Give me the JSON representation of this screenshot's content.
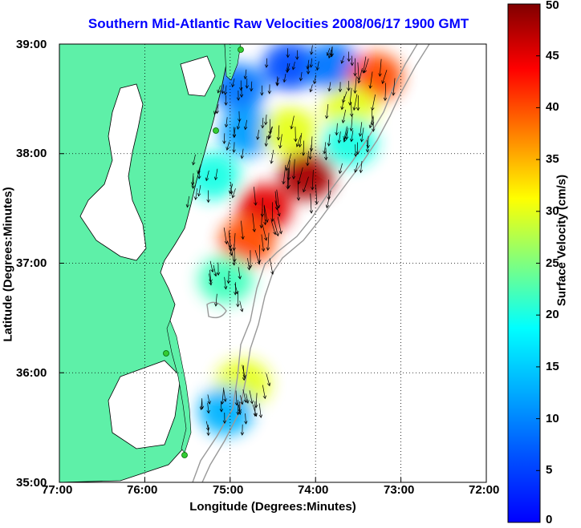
{
  "title": "Southern Mid-Atlantic Raw Velocities 2008/06/17 1900 GMT",
  "axes": {
    "xlabel": "Longitude (Degrees:Minutes)",
    "ylabel": "Latitude (Degrees:Minutes)",
    "x_ticks": [
      "77:00",
      "76:00",
      "75:00",
      "74:00",
      "73:00",
      "72:00"
    ],
    "y_ticks": [
      "39:00",
      "38:00",
      "37:00",
      "36:00",
      "35:00"
    ],
    "xlim": [
      -77,
      -72
    ],
    "ylim": [
      35,
      39
    ],
    "grid": "dotted"
  },
  "colorbar": {
    "label": "Surface Velocity (cm/s)",
    "ticks": [
      "0",
      "5",
      "10",
      "15",
      "20",
      "25",
      "30",
      "35",
      "40",
      "45",
      "50"
    ],
    "range": [
      0,
      50
    ],
    "colormap": "jet"
  },
  "colors": {
    "land": "#5ef0a8",
    "coast_line": "#000000",
    "bathymetry": "#999999",
    "title": "#0000ff",
    "station": "#33cc33"
  },
  "chart_data": {
    "type": "heatmap",
    "description_variable": "surface current velocity (cm/s) with vector arrows",
    "regions": [
      {
        "lon": -74.9,
        "lat": 38.6,
        "speed": 12
      },
      {
        "lon": -74.3,
        "lat": 38.8,
        "speed": 10
      },
      {
        "lon": -73.8,
        "lat": 38.8,
        "speed": 12
      },
      {
        "lon": -73.3,
        "lat": 38.7,
        "speed": 40
      },
      {
        "lon": -73.6,
        "lat": 38.4,
        "speed": 30
      },
      {
        "lon": -74.8,
        "lat": 38.2,
        "speed": 14
      },
      {
        "lon": -74.3,
        "lat": 38.2,
        "speed": 30
      },
      {
        "lon": -73.6,
        "lat": 38.1,
        "speed": 20
      },
      {
        "lon": -74.1,
        "lat": 37.8,
        "speed": 48
      },
      {
        "lon": -74.6,
        "lat": 37.5,
        "speed": 45
      },
      {
        "lon": -75.2,
        "lat": 37.8,
        "speed": 20
      },
      {
        "lon": -74.8,
        "lat": 37.2,
        "speed": 40
      },
      {
        "lon": -75.05,
        "lat": 36.85,
        "speed": 22
      },
      {
        "lon": -74.85,
        "lat": 35.9,
        "speed": 30
      },
      {
        "lon": -75.05,
        "lat": 35.65,
        "speed": 15
      }
    ]
  }
}
